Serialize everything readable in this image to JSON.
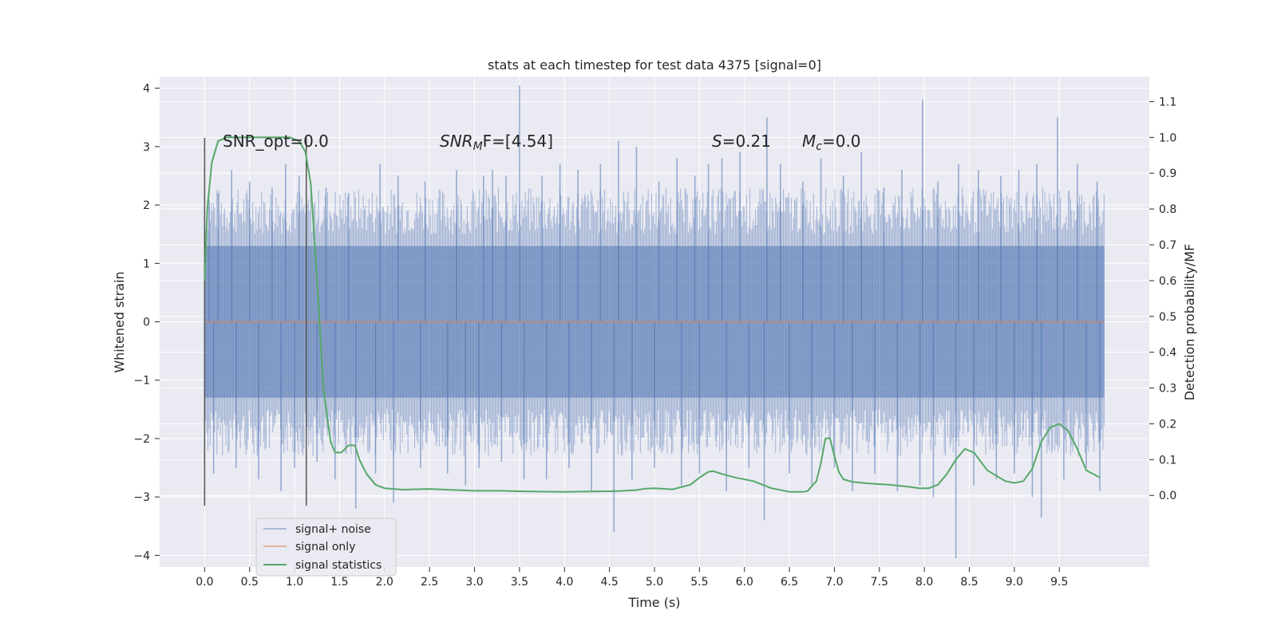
{
  "chart_data": {
    "type": "line",
    "title": "stats at each timestep for test data 4375 [signal=0]",
    "xlabel": "Time (s)",
    "ylabel": "Whitened strain",
    "y2label": "Detection probability/MF",
    "xlim": [
      -0.5,
      10.5
    ],
    "ylim": [
      -4.2,
      4.2
    ],
    "y2lim": [
      -0.2,
      1.17
    ],
    "xticks": [
      "0.0",
      "0.5",
      "1.0",
      "1.5",
      "2.0",
      "2.5",
      "3.0",
      "3.5",
      "4.0",
      "4.5",
      "5.0",
      "5.5",
      "6.0",
      "6.5",
      "7.0",
      "7.5",
      "8.0",
      "8.5",
      "9.0",
      "9.5"
    ],
    "yticks": [
      "4",
      "3",
      "2",
      "1",
      "0",
      "−1",
      "−2",
      "−3",
      "−4"
    ],
    "y2ticks": [
      "1.1",
      "1.0",
      "0.9",
      "0.8",
      "0.7",
      "0.6",
      "0.5",
      "0.4",
      "0.3",
      "0.2",
      "0.1",
      "0.0"
    ],
    "grid": true,
    "legend_position": "lower-left",
    "colors": {
      "background": "#eaeaf2",
      "grid": "#ffffff",
      "noise": "#4c72b0",
      "signal": "#dd8452",
      "stats": "#55a868",
      "vline": "#555555"
    },
    "annotations": {
      "snr_opt": "SNR_opt=0.0",
      "snr_mf_prefix": "SNR",
      "snr_mf_sub": "M",
      "snr_mf_suffix": "F=[4.54]",
      "s_sym": "S",
      "s_val": "=0.21",
      "mc_sym": "M",
      "mc_sub": "c",
      "mc_val": "=0.0"
    },
    "vlines_x": [
      0.0,
      1.13
    ],
    "series": [
      {
        "name": "signal+ noise",
        "kind": "noise",
        "x_range": [
          0.0,
          10.0
        ],
        "envelope": [
          1.3,
          -1.3
        ],
        "spikes_up": [
          [
            0.05,
            2.1
          ],
          [
            0.15,
            2.2
          ],
          [
            0.3,
            2.6
          ],
          [
            0.5,
            2.4
          ],
          [
            0.75,
            2.3
          ],
          [
            0.9,
            2.7
          ],
          [
            1.05,
            2.5
          ],
          [
            1.35,
            2.3
          ],
          [
            1.6,
            2.2
          ],
          [
            1.95,
            2.7
          ],
          [
            2.15,
            2.5
          ],
          [
            2.45,
            2.4
          ],
          [
            2.8,
            2.6
          ],
          [
            3.1,
            2.5
          ],
          [
            3.2,
            2.6
          ],
          [
            3.35,
            2.5
          ],
          [
            3.5,
            4.05
          ],
          [
            3.75,
            2.5
          ],
          [
            3.95,
            2.7
          ],
          [
            4.15,
            2.6
          ],
          [
            4.4,
            2.7
          ],
          [
            4.6,
            3.1
          ],
          [
            4.8,
            3.0
          ],
          [
            5.05,
            2.4
          ],
          [
            5.25,
            2.8
          ],
          [
            5.45,
            2.5
          ],
          [
            5.6,
            2.7
          ],
          [
            5.75,
            2.8
          ],
          [
            5.95,
            2.9
          ],
          [
            6.25,
            3.5
          ],
          [
            6.4,
            2.7
          ],
          [
            6.65,
            2.4
          ],
          [
            6.85,
            2.8
          ],
          [
            7.1,
            2.5
          ],
          [
            7.3,
            2.9
          ],
          [
            7.55,
            2.3
          ],
          [
            7.75,
            2.6
          ],
          [
            7.98,
            3.8
          ],
          [
            8.15,
            2.4
          ],
          [
            8.38,
            2.7
          ],
          [
            8.6,
            2.6
          ],
          [
            8.85,
            2.5
          ],
          [
            9.05,
            2.6
          ],
          [
            9.25,
            2.7
          ],
          [
            9.48,
            3.5
          ],
          [
            9.7,
            2.7
          ],
          [
            9.92,
            2.4
          ]
        ],
        "spikes_down": [
          [
            0.1,
            -2.6
          ],
          [
            0.35,
            -2.5
          ],
          [
            0.6,
            -2.7
          ],
          [
            0.85,
            -2.9
          ],
          [
            1.0,
            -2.5
          ],
          [
            1.25,
            -2.4
          ],
          [
            1.45,
            -2.7
          ],
          [
            1.68,
            -3.2
          ],
          [
            1.9,
            -2.6
          ],
          [
            2.1,
            -3.1
          ],
          [
            2.4,
            -2.5
          ],
          [
            2.7,
            -2.6
          ],
          [
            2.9,
            -2.8
          ],
          [
            3.05,
            -2.5
          ],
          [
            3.3,
            -2.4
          ],
          [
            3.55,
            -2.7
          ],
          [
            3.8,
            -2.7
          ],
          [
            4.05,
            -2.5
          ],
          [
            4.3,
            -2.9
          ],
          [
            4.55,
            -3.6
          ],
          [
            4.75,
            -2.7
          ],
          [
            5.0,
            -2.5
          ],
          [
            5.3,
            -2.8
          ],
          [
            5.5,
            -2.6
          ],
          [
            5.8,
            -2.9
          ],
          [
            6.05,
            -2.5
          ],
          [
            6.22,
            -3.4
          ],
          [
            6.5,
            -2.6
          ],
          [
            6.75,
            -2.8
          ],
          [
            7.0,
            -2.5
          ],
          [
            7.2,
            -2.9
          ],
          [
            7.45,
            -2.6
          ],
          [
            7.7,
            -2.9
          ],
          [
            7.95,
            -2.8
          ],
          [
            8.1,
            -3.0
          ],
          [
            8.35,
            -4.05
          ],
          [
            8.55,
            -2.8
          ],
          [
            8.8,
            -2.7
          ],
          [
            9.0,
            -2.6
          ],
          [
            9.2,
            -3.0
          ],
          [
            9.3,
            -3.35
          ],
          [
            9.55,
            -2.7
          ],
          [
            9.8,
            -2.5
          ],
          [
            9.95,
            -2.9
          ]
        ]
      },
      {
        "name": "signal only",
        "kind": "line",
        "x": [
          0.0,
          10.0
        ],
        "y": [
          0.0,
          0.0
        ]
      },
      {
        "name": "signal statistics",
        "kind": "line",
        "axis": "y2",
        "x": [
          0.0,
          0.03,
          0.08,
          0.15,
          0.25,
          0.4,
          0.6,
          0.8,
          0.95,
          1.05,
          1.12,
          1.18,
          1.25,
          1.32,
          1.4,
          1.45,
          1.52,
          1.6,
          1.67,
          1.72,
          1.8,
          1.9,
          2.0,
          2.2,
          2.5,
          2.8,
          3.0,
          3.3,
          3.6,
          4.0,
          4.3,
          4.6,
          4.8,
          4.9,
          5.0,
          5.2,
          5.4,
          5.5,
          5.6,
          5.65,
          5.75,
          5.9,
          6.1,
          6.3,
          6.5,
          6.65,
          6.7,
          6.8,
          6.85,
          6.9,
          6.95,
          7.0,
          7.05,
          7.1,
          7.2,
          7.4,
          7.6,
          7.8,
          7.95,
          8.05,
          8.15,
          8.25,
          8.35,
          8.45,
          8.55,
          8.7,
          8.9,
          9.0,
          9.1,
          9.2,
          9.3,
          9.4,
          9.5,
          9.6,
          9.7,
          9.8,
          9.95
        ],
        "y": [
          0.6,
          0.8,
          0.93,
          0.99,
          1.0,
          1.0,
          1.0,
          1.0,
          1.0,
          0.99,
          0.96,
          0.87,
          0.6,
          0.3,
          0.15,
          0.12,
          0.12,
          0.14,
          0.14,
          0.1,
          0.06,
          0.03,
          0.02,
          0.016,
          0.018,
          0.015,
          0.013,
          0.013,
          0.011,
          0.01,
          0.011,
          0.012,
          0.015,
          0.019,
          0.02,
          0.017,
          0.03,
          0.05,
          0.066,
          0.068,
          0.06,
          0.05,
          0.04,
          0.02,
          0.01,
          0.01,
          0.012,
          0.04,
          0.09,
          0.159,
          0.16,
          0.11,
          0.065,
          0.045,
          0.038,
          0.033,
          0.03,
          0.025,
          0.02,
          0.02,
          0.03,
          0.06,
          0.1,
          0.13,
          0.12,
          0.07,
          0.04,
          0.035,
          0.04,
          0.075,
          0.15,
          0.19,
          0.2,
          0.18,
          0.13,
          0.07,
          0.05
        ]
      }
    ]
  }
}
